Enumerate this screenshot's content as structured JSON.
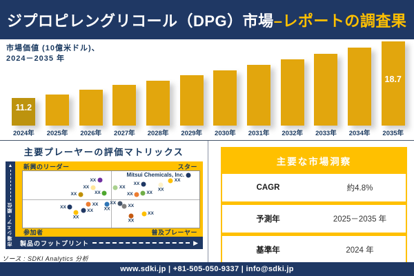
{
  "header": {
    "title_main": "ジプロピレングリコール（DPG）市場",
    "title_accent": "–レポートの調査果"
  },
  "chart_data": [
    {
      "type": "bar",
      "title_line1": "市場価値 (10億米ドル)、",
      "title_line2": "2024－2035 年",
      "categories": [
        "2024年",
        "2025年",
        "2026年",
        "2027年",
        "2028年",
        "2029年",
        "2030年",
        "2031年",
        "2032年",
        "2033年",
        "2034年",
        "2035年"
      ],
      "values": [
        11.2,
        11.7,
        12.3,
        12.9,
        13.5,
        14.2,
        14.9,
        15.6,
        16.3,
        17.1,
        17.9,
        18.7
      ],
      "shown_value_labels": [
        {
          "index": 0,
          "text": "11.2"
        },
        {
          "index": 11,
          "text": "18.7"
        }
      ],
      "bar_color": "#E2A60D",
      "first_bar_color": "#BD930E",
      "value_label_color": "#FFFFFF",
      "axis_label_color": "#17375E",
      "gridlines": false,
      "legend": false
    },
    {
      "type": "scatter",
      "title": "主要プレーヤーの評価マトリックス",
      "quadrant_top_left": "新興のリーダー",
      "quadrant_top_right": "スター",
      "quadrant_bottom_left": "参加者",
      "quadrant_bottom_right": "普及プレーヤー",
      "y_axis_label": "市場シェア・順位",
      "x_axis_label": "製品のフットプリント",
      "points": [
        {
          "x": 43.6,
          "y": 16,
          "color": "#7030A0",
          "label": "XX",
          "side": "left"
        },
        {
          "x": 39.7,
          "y": 29,
          "color": "#FFE699",
          "label": "XX",
          "side": "left"
        },
        {
          "x": 46.2,
          "y": 39,
          "color": "#4EA72E",
          "label": "XX",
          "side": "left"
        },
        {
          "x": 32.7,
          "y": 41,
          "color": "#BF8F00",
          "label": "XX",
          "side": "left"
        },
        {
          "x": 52.5,
          "y": 29,
          "color": "#A9D18E",
          "label": "XX",
          "side": "right"
        },
        {
          "x": 68.3,
          "y": 23,
          "color": "#1F3864",
          "label": "XX",
          "side": "left"
        },
        {
          "x": 78.2,
          "y": 24,
          "color": "#FFF2CC",
          "label": "XX",
          "side": "below"
        },
        {
          "x": 83.7,
          "y": 17,
          "color": "#FFC000",
          "label": "XX",
          "side": "right"
        },
        {
          "x": 93.6,
          "y": 7,
          "color": "#1F3864",
          "label": "Mitsui Chemicals, Inc.",
          "side": "left",
          "highlight": true
        },
        {
          "x": 64.5,
          "y": 41,
          "color": "#ED7D31",
          "label": "XX",
          "side": "left"
        },
        {
          "x": 67.9,
          "y": 39,
          "color": "#70AD47",
          "label": "XX",
          "side": "right"
        },
        {
          "x": 26.7,
          "y": 64,
          "color": "#1F3864",
          "label": "XX",
          "side": "left"
        },
        {
          "x": 37.2,
          "y": 59,
          "color": "#ED7D31",
          "label": "XX",
          "side": "right"
        },
        {
          "x": 47.7,
          "y": 59,
          "color": "#2E75B6",
          "label": "XX",
          "side": "below"
        },
        {
          "x": 30.1,
          "y": 73,
          "color": "#FFC000",
          "label": "XX",
          "side": "below"
        },
        {
          "x": 34.3,
          "y": 70,
          "color": "#203864",
          "label": "XX",
          "side": "right"
        },
        {
          "x": 54.9,
          "y": 57,
          "color": "#44546A",
          "label": "XX",
          "side": "left"
        },
        {
          "x": 57.4,
          "y": 62,
          "color": "#7F7F7F",
          "label": "XX",
          "side": "right"
        },
        {
          "x": 61.3,
          "y": 79,
          "color": "#C55A11",
          "label": "XX",
          "side": "below"
        },
        {
          "x": 68.6,
          "y": 75,
          "color": "#FFC000",
          "label": "XX",
          "side": "right"
        }
      ]
    }
  ],
  "insights": {
    "title": "主要な市場洞察",
    "rows": [
      {
        "label": "CAGR",
        "value": "約4.8%"
      },
      {
        "label": "予測年",
        "value": "2025－2035 年"
      },
      {
        "label": "基準年",
        "value": "2024 年"
      }
    ]
  },
  "icons": {
    "up_arrow": "▲",
    "right_arrow": "▶"
  },
  "source_label": "ソース : SDKI Analytics 分析",
  "footer": {
    "text": "www.sdki.jp | +81-505-050-9337 | info@sdki.jp"
  },
  "colors": {
    "navy": "#1F3864",
    "gold": "#FFC000"
  }
}
